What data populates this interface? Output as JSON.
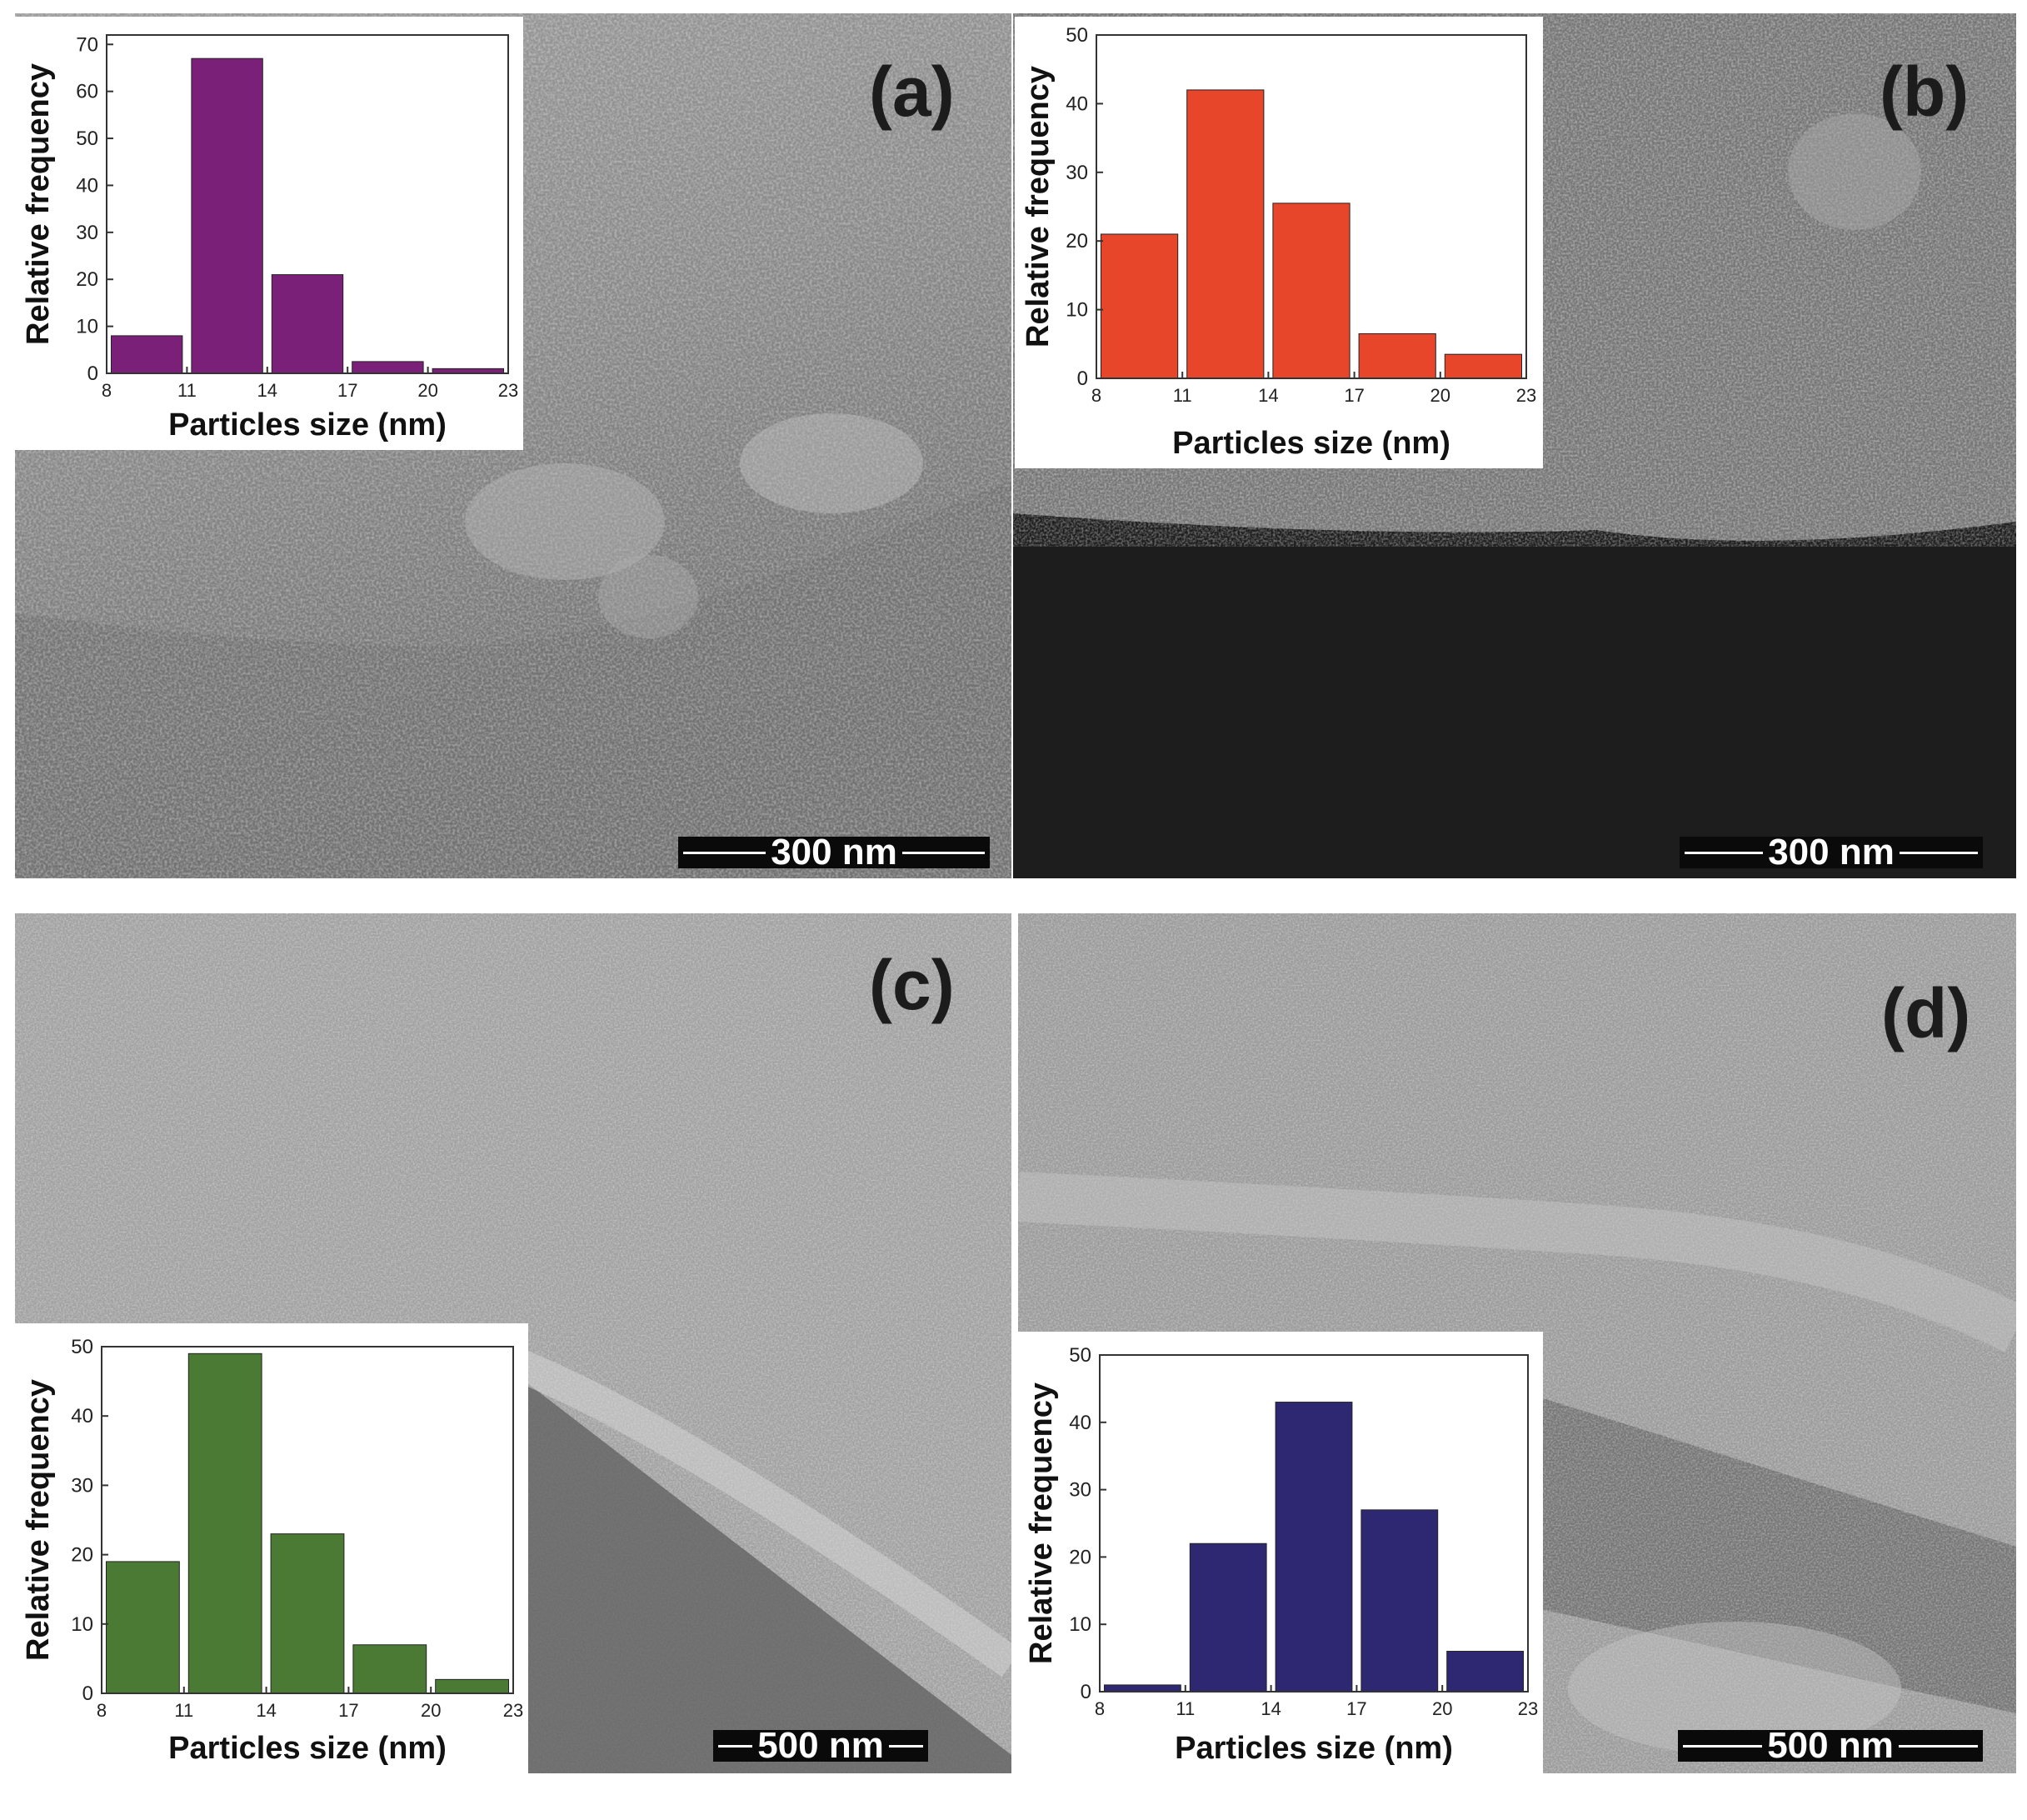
{
  "panels": [
    {
      "label": "(a)",
      "scalebar": "300 nm"
    },
    {
      "label": "(b)",
      "scalebar": "300 nm"
    },
    {
      "label": "(c)",
      "scalebar": "500 nm"
    },
    {
      "label": "(d)",
      "scalebar": "500 nm"
    }
  ],
  "chart_data": [
    {
      "type": "bar",
      "panel": "(a)",
      "xlabel": "Particles size  (nm)",
      "ylabel": "Relative frequency",
      "xticks": [
        8,
        11,
        14,
        17,
        20,
        23
      ],
      "yticks": [
        0,
        10,
        20,
        30,
        40,
        50,
        60,
        70
      ],
      "bins": [
        [
          8,
          11
        ],
        [
          11,
          14
        ],
        [
          14,
          17
        ],
        [
          17,
          20
        ],
        [
          20,
          23
        ]
      ],
      "values": [
        8,
        67,
        21,
        2.5,
        1
      ],
      "xlim": [
        8,
        23
      ],
      "ylim": [
        0,
        72
      ],
      "color": "#7b2078"
    },
    {
      "type": "bar",
      "panel": "(b)",
      "xlabel": "Particles size  (nm)",
      "ylabel": "Relative frequency",
      "xticks": [
        8,
        11,
        14,
        17,
        20,
        23
      ],
      "yticks": [
        0,
        10,
        20,
        30,
        40,
        50
      ],
      "bins": [
        [
          8,
          11
        ],
        [
          11,
          14
        ],
        [
          14,
          17
        ],
        [
          17,
          20
        ],
        [
          20,
          23
        ]
      ],
      "values": [
        21,
        42,
        25.5,
        6.5,
        3.5
      ],
      "xlim": [
        8,
        23
      ],
      "ylim": [
        0,
        50
      ],
      "color": "#e8462a"
    },
    {
      "type": "bar",
      "panel": "(c)",
      "xlabel": "Particles size  (nm)",
      "ylabel": "Relative frequency",
      "xticks": [
        8,
        11,
        14,
        17,
        20,
        23
      ],
      "yticks": [
        0,
        10,
        20,
        30,
        40,
        50
      ],
      "bins": [
        [
          8,
          11
        ],
        [
          11,
          14
        ],
        [
          14,
          17
        ],
        [
          17,
          20
        ],
        [
          20,
          23
        ]
      ],
      "values": [
        19,
        49,
        23,
        7,
        2
      ],
      "xlim": [
        8,
        23
      ],
      "ylim": [
        0,
        50
      ],
      "color": "#4a7a34"
    },
    {
      "type": "bar",
      "panel": "(d)",
      "xlabel": "Particles size  (nm)",
      "ylabel": "Relative frequency",
      "xticks": [
        8,
        11,
        14,
        17,
        20,
        23
      ],
      "yticks": [
        0,
        10,
        20,
        30,
        40,
        50
      ],
      "bins": [
        [
          8,
          11
        ],
        [
          11,
          14
        ],
        [
          14,
          17
        ],
        [
          17,
          20
        ],
        [
          20,
          23
        ]
      ],
      "values": [
        1,
        22,
        43,
        27,
        6
      ],
      "xlim": [
        8,
        23
      ],
      "ylim": [
        0,
        50
      ],
      "color": "#2e2872"
    }
  ]
}
